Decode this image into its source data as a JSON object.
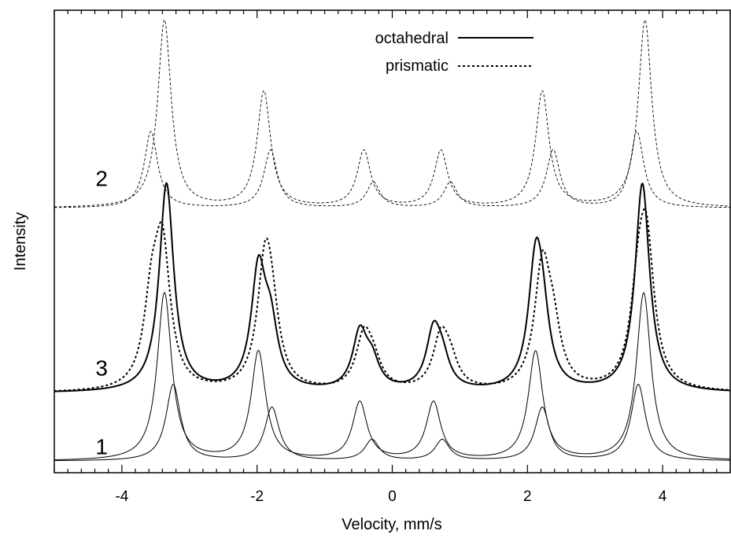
{
  "chart_data": {
    "type": "line",
    "xlabel": "Velocity, mm/s",
    "ylabel": "Intensity",
    "xlim": [
      -5,
      5
    ],
    "ylim": [
      0,
      10
    ],
    "x_ticks": [
      "-4",
      "-2",
      "0",
      "2",
      "4"
    ],
    "grid": false,
    "legend": {
      "placement": "top-center",
      "entries": [
        {
          "label": "octahedral",
          "style": "solid"
        },
        {
          "label": "prismatic",
          "style": "dotted"
        }
      ]
    },
    "curve_labels": [
      {
        "text": "2",
        "x": -4.3,
        "y": 6.2
      },
      {
        "text": "3",
        "x": -4.3,
        "y": 2.1
      },
      {
        "text": "1",
        "x": -4.3,
        "y": 0.4
      }
    ],
    "groups": [
      {
        "id": "1",
        "baseline": 0.25,
        "components": [
          {
            "stroke": "solid",
            "width": 1.0,
            "peaks": [
              {
                "x": -3.37,
                "h": 3.62,
                "w": 0.13
              },
              {
                "x": -1.98,
                "h": 2.35,
                "w": 0.13
              },
              {
                "x": -0.48,
                "h": 1.25,
                "w": 0.13
              },
              {
                "x": 0.61,
                "h": 1.25,
                "w": 0.13
              },
              {
                "x": 2.12,
                "h": 2.35,
                "w": 0.13
              },
              {
                "x": 3.72,
                "h": 3.62,
                "w": 0.13
              }
            ]
          },
          {
            "stroke": "solid",
            "width": 1.0,
            "peaks": [
              {
                "x": -3.24,
                "h": 1.65,
                "w": 0.13
              },
              {
                "x": -1.78,
                "h": 1.15,
                "w": 0.13
              },
              {
                "x": -0.3,
                "h": 0.45,
                "w": 0.13
              },
              {
                "x": 0.74,
                "h": 0.45,
                "w": 0.13
              },
              {
                "x": 2.22,
                "h": 1.15,
                "w": 0.13
              },
              {
                "x": 3.64,
                "h": 1.65,
                "w": 0.13
              }
            ]
          }
        ]
      },
      {
        "id": "2",
        "baseline": 5.72,
        "components": [
          {
            "stroke": "dashed",
            "width": 0.9,
            "peaks": [
              {
                "x": -3.37,
                "h": 4.05,
                "w": 0.12
              },
              {
                "x": -1.9,
                "h": 2.5,
                "w": 0.12
              },
              {
                "x": -0.42,
                "h": 1.22,
                "w": 0.12
              },
              {
                "x": 0.72,
                "h": 1.22,
                "w": 0.12
              },
              {
                "x": 2.22,
                "h": 2.5,
                "w": 0.12
              },
              {
                "x": 3.74,
                "h": 4.05,
                "w": 0.12
              }
            ]
          },
          {
            "stroke": "dashed",
            "width": 0.9,
            "peaks": [
              {
                "x": -3.57,
                "h": 1.65,
                "w": 0.12
              },
              {
                "x": -1.8,
                "h": 1.25,
                "w": 0.12
              },
              {
                "x": -0.28,
                "h": 0.55,
                "w": 0.12
              },
              {
                "x": 0.86,
                "h": 0.55,
                "w": 0.12
              },
              {
                "x": 2.38,
                "h": 1.25,
                "w": 0.12
              },
              {
                "x": 3.62,
                "h": 1.65,
                "w": 0.12
              }
            ]
          }
        ]
      },
      {
        "id": "3",
        "baseline": 1.72,
        "components": [
          {
            "stroke": "solid",
            "width": 2.0,
            "peaks": [
              {
                "x": -3.34,
                "h": 4.5,
                "w": 0.13
              },
              {
                "x": -1.98,
                "h": 2.5,
                "w": 0.13
              },
              {
                "x": -1.8,
                "h": 1.2,
                "w": 0.13
              },
              {
                "x": -0.48,
                "h": 1.2,
                "w": 0.13
              },
              {
                "x": -0.3,
                "h": 0.55,
                "w": 0.13
              },
              {
                "x": 0.61,
                "h": 1.2,
                "w": 0.13
              },
              {
                "x": 0.74,
                "h": 0.55,
                "w": 0.13
              },
              {
                "x": 2.12,
                "h": 2.5,
                "w": 0.13
              },
              {
                "x": 2.22,
                "h": 1.2,
                "w": 0.13
              },
              {
                "x": 3.7,
                "h": 4.5,
                "w": 0.13
              }
            ]
          },
          {
            "stroke": "dotted",
            "width": 2.0,
            "peaks": [
              {
                "x": -3.4,
                "h": 2.9,
                "w": 0.14
              },
              {
                "x": -3.56,
                "h": 1.65,
                "w": 0.14
              },
              {
                "x": -1.88,
                "h": 2.55,
                "w": 0.14
              },
              {
                "x": -1.78,
                "h": 1.05,
                "w": 0.14
              },
              {
                "x": -0.42,
                "h": 1.1,
                "w": 0.14
              },
              {
                "x": -0.28,
                "h": 0.5,
                "w": 0.14
              },
              {
                "x": 0.72,
                "h": 1.1,
                "w": 0.14
              },
              {
                "x": 0.86,
                "h": 0.5,
                "w": 0.14
              },
              {
                "x": 2.22,
                "h": 2.55,
                "w": 0.14
              },
              {
                "x": 2.38,
                "h": 1.05,
                "w": 0.14
              },
              {
                "x": 3.64,
                "h": 1.65,
                "w": 0.14
              },
              {
                "x": 3.76,
                "h": 2.9,
                "w": 0.14
              }
            ]
          }
        ]
      }
    ]
  }
}
